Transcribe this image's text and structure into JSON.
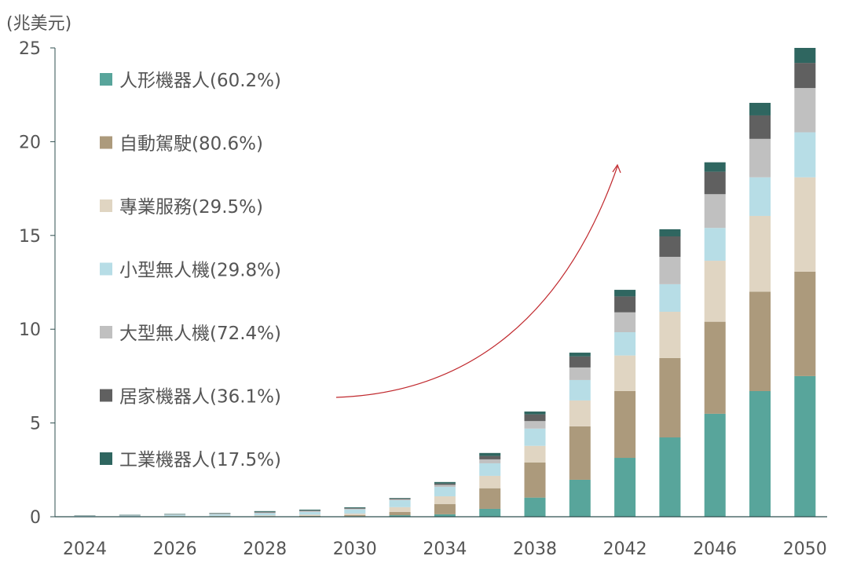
{
  "chart_data": {
    "type": "bar",
    "stacked": true,
    "title": "",
    "ylabel": "(兆美元)",
    "xlabel": "",
    "ylim": [
      0,
      25
    ],
    "yticks": [
      "0",
      "5",
      "10",
      "15",
      "20",
      "25"
    ],
    "ytick_values": [
      0,
      5,
      10,
      15,
      20,
      25
    ],
    "categories": [
      "2024",
      "2025",
      "2026",
      "2027",
      "2028",
      "2029",
      "2030",
      "2032",
      "2034",
      "2036",
      "2038",
      "2040",
      "2042",
      "2044",
      "2046",
      "2048",
      "2050"
    ],
    "xtick_labels": [
      "2024",
      "",
      "2026",
      "",
      "2028",
      "",
      "2030",
      "",
      "2034",
      "",
      "2038",
      "",
      "2042",
      "",
      "2046",
      "",
      "2050"
    ],
    "legend_position": "left-inside",
    "series": [
      {
        "name": "人形機器人(60.2%)",
        "color": "#58a59b",
        "values": [
          0.01,
          0.01,
          0.01,
          0.01,
          0.01,
          0.02,
          0.03,
          0.08,
          0.13,
          0.42,
          1.02,
          1.97,
          3.14,
          4.23,
          5.49,
          6.7,
          7.5
        ]
      },
      {
        "name": "自動駕駛(80.6%)",
        "color": "#ac9a7c",
        "values": [
          0.0,
          0.0,
          0.01,
          0.01,
          0.02,
          0.03,
          0.06,
          0.18,
          0.55,
          1.1,
          1.87,
          2.85,
          3.56,
          4.23,
          4.91,
          5.3,
          5.57
        ]
      },
      {
        "name": "專業服務(29.5%)",
        "color": "#e0d5c2",
        "values": [
          0.01,
          0.01,
          0.02,
          0.03,
          0.04,
          0.06,
          0.08,
          0.25,
          0.41,
          0.66,
          0.89,
          1.38,
          1.9,
          2.47,
          3.25,
          4.04,
          5.03
        ]
      },
      {
        "name": "小型無人機(29.8%)",
        "color": "#b7dde6",
        "values": [
          0.03,
          0.04,
          0.06,
          0.08,
          0.12,
          0.15,
          0.22,
          0.37,
          0.5,
          0.67,
          0.92,
          1.09,
          1.24,
          1.47,
          1.75,
          2.06,
          2.4
        ]
      },
      {
        "name": "大型無人機(72.4%)",
        "color": "#c0c0c0",
        "values": [
          0.01,
          0.01,
          0.02,
          0.03,
          0.04,
          0.05,
          0.04,
          0.05,
          0.11,
          0.21,
          0.4,
          0.67,
          1.06,
          1.46,
          1.8,
          2.05,
          2.36
        ]
      },
      {
        "name": "居家機器人(36.1%)",
        "color": "#606060",
        "values": [
          0.01,
          0.01,
          0.01,
          0.02,
          0.03,
          0.03,
          0.03,
          0.04,
          0.07,
          0.18,
          0.36,
          0.59,
          0.85,
          1.09,
          1.2,
          1.25,
          1.34
        ]
      },
      {
        "name": "工業機器人(17.5%)",
        "color": "#2f6660",
        "values": [
          0.01,
          0.02,
          0.02,
          0.02,
          0.04,
          0.04,
          0.04,
          0.03,
          0.08,
          0.16,
          0.15,
          0.2,
          0.35,
          0.38,
          0.5,
          0.67,
          0.8
        ]
      }
    ],
    "annotation": {
      "type": "growth-arrow",
      "color": "#c0282d"
    }
  }
}
